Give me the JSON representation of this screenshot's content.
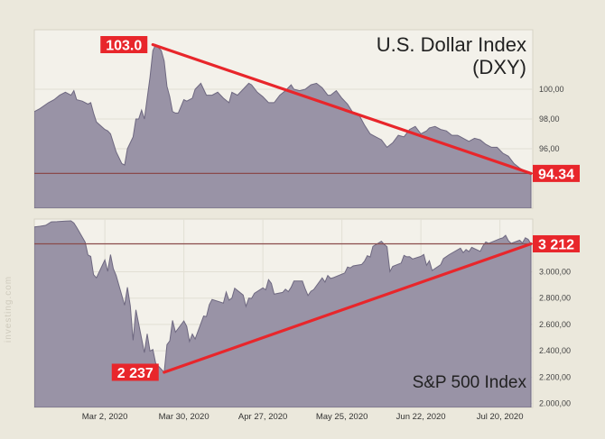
{
  "colors": {
    "background": "#ebe8dc",
    "panel": "#f3f1ea",
    "area_fill": "#9993a6",
    "area_stroke": "#6e6880",
    "trend_line": "#e8262b",
    "label_bg": "#e8262b",
    "label_text": "#ffffff",
    "reference_line": "#8a4b4b"
  },
  "watermark": "investing.com",
  "chart_data": [
    {
      "type": "area",
      "title": "U.S. Dollar Index",
      "subtitle": "(DXY)",
      "x_tick_labels": [],
      "y_tick_labels": [
        "100,00",
        "98,00",
        "96,00"
      ],
      "y_ticks": [
        100,
        98,
        96
      ],
      "ylim": [
        92.0,
        104.0
      ],
      "x_range": [
        "2020-02-06",
        "2020-07-31"
      ],
      "reference_line": 94.34,
      "trend_line": {
        "from": {
          "x": "2020-03-19",
          "y": 103.0
        },
        "to": {
          "x": "2020-07-31",
          "y": 94.34
        }
      },
      "annotations": [
        {
          "text": "103.0",
          "x": "2020-03-19",
          "y": 103.0,
          "side": "left"
        },
        {
          "text": "94.34",
          "x": "2020-07-31",
          "y": 94.34,
          "side": "right"
        }
      ],
      "series": [
        {
          "points": [
            [
              "2020-02-06",
              98.5
            ],
            [
              "2020-02-08",
              98.7
            ],
            [
              "2020-02-11",
              99.1
            ],
            [
              "2020-02-13",
              99.3
            ],
            [
              "2020-02-15",
              99.6
            ],
            [
              "2020-02-17",
              99.8
            ],
            [
              "2020-02-19",
              99.6
            ],
            [
              "2020-02-20",
              99.9
            ],
            [
              "2020-02-21",
              99.3
            ],
            [
              "2020-02-23",
              99.2
            ],
            [
              "2020-02-25",
              99.0
            ],
            [
              "2020-02-26",
              99.1
            ],
            [
              "2020-02-27",
              98.4
            ],
            [
              "2020-02-28",
              97.8
            ],
            [
              "2020-03-02",
              97.3
            ],
            [
              "2020-03-03",
              97.2
            ],
            [
              "2020-03-04",
              97.0
            ],
            [
              "2020-03-05",
              96.4
            ],
            [
              "2020-03-06",
              95.8
            ],
            [
              "2020-03-08",
              95.0
            ],
            [
              "2020-03-09",
              94.9
            ],
            [
              "2020-03-10",
              96.0
            ],
            [
              "2020-03-11",
              96.4
            ],
            [
              "2020-03-12",
              96.8
            ],
            [
              "2020-03-13",
              98.0
            ],
            [
              "2020-03-14",
              98.0
            ],
            [
              "2020-03-15",
              98.6
            ],
            [
              "2020-03-16",
              98.0
            ],
            [
              "2020-03-17",
              99.4
            ],
            [
              "2020-03-18",
              100.8
            ],
            [
              "2020-03-19",
              102.6
            ],
            [
              "2020-03-20",
              103.0
            ],
            [
              "2020-03-22",
              102.6
            ],
            [
              "2020-03-23",
              101.9
            ],
            [
              "2020-03-24",
              100.2
            ],
            [
              "2020-03-25",
              99.5
            ],
            [
              "2020-03-26",
              98.5
            ],
            [
              "2020-03-27",
              98.4
            ],
            [
              "2020-03-28",
              98.4
            ],
            [
              "2020-03-30",
              99.3
            ],
            [
              "2020-03-31",
              99.2
            ],
            [
              "2020-04-02",
              99.4
            ],
            [
              "2020-04-03",
              100.0
            ],
            [
              "2020-04-05",
              100.4
            ],
            [
              "2020-04-07",
              99.6
            ],
            [
              "2020-04-09",
              99.6
            ],
            [
              "2020-04-11",
              99.8
            ],
            [
              "2020-04-13",
              99.4
            ],
            [
              "2020-04-15",
              99.1
            ],
            [
              "2020-04-16",
              99.8
            ],
            [
              "2020-04-18",
              99.6
            ],
            [
              "2020-04-20",
              100.0
            ],
            [
              "2020-04-22",
              100.4
            ],
            [
              "2020-04-23",
              100.3
            ],
            [
              "2020-04-25",
              99.8
            ],
            [
              "2020-04-27",
              99.5
            ],
            [
              "2020-04-29",
              99.1
            ],
            [
              "2020-05-01",
              99.1
            ],
            [
              "2020-05-03",
              99.6
            ],
            [
              "2020-05-05",
              99.9
            ],
            [
              "2020-05-07",
              100.3
            ],
            [
              "2020-05-08",
              100.0
            ],
            [
              "2020-05-10",
              99.9
            ],
            [
              "2020-05-12",
              100.0
            ],
            [
              "2020-05-14",
              100.3
            ],
            [
              "2020-05-16",
              100.4
            ],
            [
              "2020-05-18",
              100.1
            ],
            [
              "2020-05-20",
              99.6
            ],
            [
              "2020-05-21",
              99.6
            ],
            [
              "2020-05-23",
              99.9
            ],
            [
              "2020-05-25",
              99.4
            ],
            [
              "2020-05-27",
              99.0
            ],
            [
              "2020-05-29",
              98.4
            ],
            [
              "2020-05-31",
              98.3
            ],
            [
              "2020-06-02",
              97.6
            ],
            [
              "2020-06-04",
              97.0
            ],
            [
              "2020-06-06",
              96.8
            ],
            [
              "2020-06-08",
              96.6
            ],
            [
              "2020-06-10",
              96.1
            ],
            [
              "2020-06-12",
              96.4
            ],
            [
              "2020-06-14",
              96.9
            ],
            [
              "2020-06-16",
              96.8
            ],
            [
              "2020-06-18",
              97.3
            ],
            [
              "2020-06-20",
              97.5
            ],
            [
              "2020-06-22",
              97.0
            ],
            [
              "2020-06-24",
              97.2
            ],
            [
              "2020-06-25",
              97.4
            ],
            [
              "2020-06-27",
              97.5
            ],
            [
              "2020-06-29",
              97.3
            ],
            [
              "2020-07-01",
              97.2
            ],
            [
              "2020-07-03",
              96.9
            ],
            [
              "2020-07-05",
              96.9
            ],
            [
              "2020-07-07",
              96.7
            ],
            [
              "2020-07-09",
              96.5
            ],
            [
              "2020-07-11",
              96.7
            ],
            [
              "2020-07-13",
              96.6
            ],
            [
              "2020-07-15",
              96.3
            ],
            [
              "2020-07-17",
              96.1
            ],
            [
              "2020-07-19",
              96.1
            ],
            [
              "2020-07-21",
              95.7
            ],
            [
              "2020-07-23",
              95.5
            ],
            [
              "2020-07-25",
              95.0
            ],
            [
              "2020-07-27",
              94.7
            ],
            [
              "2020-07-29",
              94.5
            ],
            [
              "2020-07-31",
              94.34
            ]
          ]
        }
      ]
    },
    {
      "type": "area",
      "title": "S&P 500 Index",
      "x_tick_labels": [
        "Mar 2, 2020",
        "Mar 30, 2020",
        "Apr 27, 2020",
        "May 25, 2020",
        "Jun 22, 2020",
        "Jul 20, 2020"
      ],
      "x_ticks": [
        "2020-03-02",
        "2020-03-30",
        "2020-04-27",
        "2020-05-25",
        "2020-06-22",
        "2020-07-20"
      ],
      "y_tick_labels": [
        "3.000,00",
        "2.800,00",
        "2.600,00",
        "2.400,00",
        "2.200,00",
        "2.000,00"
      ],
      "y_ticks": [
        3000,
        2800,
        2600,
        2400,
        2200,
        2000
      ],
      "ylim": [
        1970,
        3400
      ],
      "x_range": [
        "2020-02-06",
        "2020-07-31"
      ],
      "reference_line": 3212,
      "trend_line": {
        "from": {
          "x": "2020-03-23",
          "y": 2237
        },
        "to": {
          "x": "2020-07-31",
          "y": 3212
        }
      },
      "annotations": [
        {
          "text": "2 237",
          "x": "2020-03-23",
          "y": 2237,
          "side": "left"
        },
        {
          "text": "3 212",
          "x": "2020-07-31",
          "y": 3212,
          "side": "right"
        }
      ],
      "series": [
        {
          "points": [
            [
              "2020-02-06",
              3340
            ],
            [
              "2020-02-08",
              3345
            ],
            [
              "2020-02-10",
              3352
            ],
            [
              "2020-02-12",
              3379
            ],
            [
              "2020-02-14",
              3380
            ],
            [
              "2020-02-17",
              3385
            ],
            [
              "2020-02-19",
              3386
            ],
            [
              "2020-02-20",
              3370
            ],
            [
              "2020-02-21",
              3337
            ],
            [
              "2020-02-24",
              3225
            ],
            [
              "2020-02-25",
              3128
            ],
            [
              "2020-02-26",
              3116
            ],
            [
              "2020-02-27",
              2978
            ],
            [
              "2020-02-28",
              2954
            ],
            [
              "2020-03-02",
              3090
            ],
            [
              "2020-03-03",
              3003
            ],
            [
              "2020-03-04",
              3130
            ],
            [
              "2020-03-05",
              3023
            ],
            [
              "2020-03-06",
              2972
            ],
            [
              "2020-03-09",
              2746
            ],
            [
              "2020-03-10",
              2882
            ],
            [
              "2020-03-11",
              2741
            ],
            [
              "2020-03-12",
              2480
            ],
            [
              "2020-03-13",
              2711
            ],
            [
              "2020-03-16",
              2386
            ],
            [
              "2020-03-17",
              2529
            ],
            [
              "2020-03-18",
              2398
            ],
            [
              "2020-03-19",
              2409
            ],
            [
              "2020-03-20",
              2305
            ],
            [
              "2020-03-23",
              2237
            ],
            [
              "2020-03-24",
              2447
            ],
            [
              "2020-03-25",
              2475
            ],
            [
              "2020-03-26",
              2630
            ],
            [
              "2020-03-27",
              2541
            ],
            [
              "2020-03-30",
              2627
            ],
            [
              "2020-03-31",
              2585
            ],
            [
              "2020-04-01",
              2471
            ],
            [
              "2020-04-02",
              2527
            ],
            [
              "2020-04-03",
              2489
            ],
            [
              "2020-04-06",
              2664
            ],
            [
              "2020-04-07",
              2660
            ],
            [
              "2020-04-08",
              2750
            ],
            [
              "2020-04-09",
              2790
            ],
            [
              "2020-04-13",
              2762
            ],
            [
              "2020-04-14",
              2846
            ],
            [
              "2020-04-15",
              2784
            ],
            [
              "2020-04-16",
              2800
            ],
            [
              "2020-04-17",
              2875
            ],
            [
              "2020-04-20",
              2823
            ],
            [
              "2020-04-21",
              2737
            ],
            [
              "2020-04-22",
              2799
            ],
            [
              "2020-04-23",
              2798
            ],
            [
              "2020-04-24",
              2837
            ],
            [
              "2020-04-27",
              2878
            ],
            [
              "2020-04-28",
              2863
            ],
            [
              "2020-04-29",
              2940
            ],
            [
              "2020-04-30",
              2912
            ],
            [
              "2020-05-01",
              2830
            ],
            [
              "2020-05-04",
              2843
            ],
            [
              "2020-05-05",
              2868
            ],
            [
              "2020-05-06",
              2849
            ],
            [
              "2020-05-07",
              2882
            ],
            [
              "2020-05-08",
              2930
            ],
            [
              "2020-05-11",
              2930
            ],
            [
              "2020-05-12",
              2870
            ],
            [
              "2020-05-13",
              2820
            ],
            [
              "2020-05-14",
              2852
            ],
            [
              "2020-05-15",
              2864
            ],
            [
              "2020-05-18",
              2954
            ],
            [
              "2020-05-19",
              2922
            ],
            [
              "2020-05-20",
              2972
            ],
            [
              "2020-05-21",
              2949
            ],
            [
              "2020-05-22",
              2955
            ],
            [
              "2020-05-26",
              2991
            ],
            [
              "2020-05-27",
              3036
            ],
            [
              "2020-05-28",
              3029
            ],
            [
              "2020-05-29",
              3044
            ],
            [
              "2020-06-01",
              3055
            ],
            [
              "2020-06-02",
              3080
            ],
            [
              "2020-06-03",
              3122
            ],
            [
              "2020-06-04",
              3112
            ],
            [
              "2020-06-05",
              3193
            ],
            [
              "2020-06-08",
              3232
            ],
            [
              "2020-06-09",
              3207
            ],
            [
              "2020-06-10",
              3190
            ],
            [
              "2020-06-11",
              3002
            ],
            [
              "2020-06-12",
              3041
            ],
            [
              "2020-06-15",
              3066
            ],
            [
              "2020-06-16",
              3124
            ],
            [
              "2020-06-17",
              3113
            ],
            [
              "2020-06-18",
              3115
            ],
            [
              "2020-06-19",
              3097
            ],
            [
              "2020-06-22",
              3117
            ],
            [
              "2020-06-23",
              3131
            ],
            [
              "2020-06-24",
              3050
            ],
            [
              "2020-06-25",
              3083
            ],
            [
              "2020-06-26",
              3009
            ],
            [
              "2020-06-29",
              3053
            ],
            [
              "2020-06-30",
              3100
            ],
            [
              "2020-07-01",
              3115
            ],
            [
              "2020-07-02",
              3130
            ],
            [
              "2020-07-06",
              3179
            ],
            [
              "2020-07-07",
              3145
            ],
            [
              "2020-07-08",
              3169
            ],
            [
              "2020-07-09",
              3152
            ],
            [
              "2020-07-10",
              3185
            ],
            [
              "2020-07-13",
              3155
            ],
            [
              "2020-07-14",
              3197
            ],
            [
              "2020-07-15",
              3226
            ],
            [
              "2020-07-16",
              3215
            ],
            [
              "2020-07-17",
              3224
            ],
            [
              "2020-07-20",
              3251
            ],
            [
              "2020-07-21",
              3257
            ],
            [
              "2020-07-22",
              3276
            ],
            [
              "2020-07-23",
              3236
            ],
            [
              "2020-07-24",
              3215
            ],
            [
              "2020-07-27",
              3239
            ],
            [
              "2020-07-28",
              3218
            ],
            [
              "2020-07-29",
              3258
            ],
            [
              "2020-07-30",
              3246
            ],
            [
              "2020-07-31",
              3212
            ]
          ]
        }
      ]
    }
  ]
}
